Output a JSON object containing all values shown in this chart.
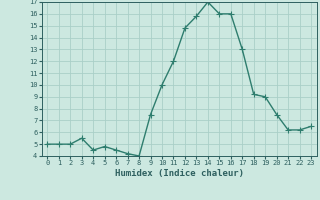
{
  "x": [
    0,
    1,
    2,
    3,
    4,
    5,
    6,
    7,
    8,
    9,
    10,
    11,
    12,
    13,
    14,
    15,
    16,
    17,
    18,
    19,
    20,
    21,
    22,
    23
  ],
  "y": [
    5.0,
    5.0,
    5.0,
    5.5,
    4.5,
    4.8,
    4.5,
    4.2,
    4.0,
    7.5,
    10.0,
    12.0,
    14.8,
    15.8,
    17.0,
    16.0,
    16.0,
    13.0,
    9.2,
    9.0,
    7.5,
    6.2,
    6.2,
    6.5
  ],
  "xlabel": "Humidex (Indice chaleur)",
  "ylabel": "",
  "xlim": [
    -0.5,
    23.5
  ],
  "ylim": [
    4,
    17
  ],
  "yticks": [
    4,
    5,
    6,
    7,
    8,
    9,
    10,
    11,
    12,
    13,
    14,
    15,
    16,
    17
  ],
  "xticks": [
    0,
    1,
    2,
    3,
    4,
    5,
    6,
    7,
    8,
    9,
    10,
    11,
    12,
    13,
    14,
    15,
    16,
    17,
    18,
    19,
    20,
    21,
    22,
    23
  ],
  "line_color": "#2e7d6e",
  "marker": "+",
  "bg_color": "#cce8e0",
  "grid_color": "#aacfc8",
  "tick_label_color": "#2e6060",
  "xlabel_color": "#2e6060",
  "line_width": 1.0,
  "marker_size": 4
}
